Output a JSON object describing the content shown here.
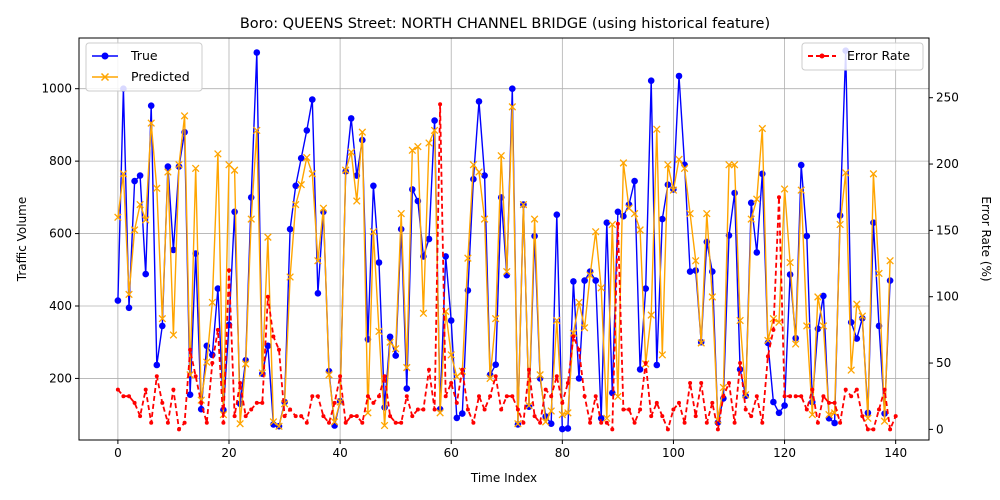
{
  "chart_data": {
    "type": "line",
    "title": "Boro: QUEENS Street: NORTH CHANNEL BRIDGE (using historical feature)",
    "xlabel": "Time Index",
    "ylabel": "Traffic Volume",
    "y2label": "Error Rate (%)",
    "xlim": [
      -7,
      146
    ],
    "ylim": [
      30,
      1140
    ],
    "y2lim": [
      -8,
      295
    ],
    "xticks": [
      0,
      20,
      40,
      60,
      80,
      100,
      120,
      140
    ],
    "yticks": [
      200,
      400,
      600,
      800,
      1000
    ],
    "y2ticks": [
      0,
      50,
      100,
      150,
      200,
      250
    ],
    "grid": true,
    "series": [
      {
        "name": "True",
        "color": "#0000ff",
        "marker": "circle",
        "axis": "left",
        "values": [
          415,
          1000,
          395,
          745,
          760,
          488,
          953,
          237,
          345,
          785,
          555,
          785,
          880,
          155,
          545,
          115,
          290,
          265,
          448,
          113,
          348,
          660,
          130,
          250,
          700,
          1100,
          213,
          290,
          73,
          68,
          135,
          612,
          732,
          808,
          885,
          970,
          435,
          660,
          220,
          70,
          137,
          772,
          918,
          760,
          858,
          308,
          732,
          520,
          120,
          315,
          263,
          612,
          172,
          722,
          690,
          537,
          585,
          912,
          115,
          537,
          360,
          91,
          103,
          443,
          750,
          965,
          760,
          210,
          238,
          700,
          485,
          1000,
          73,
          680,
          122,
          593,
          200,
          95,
          75,
          652,
          60,
          62,
          468,
          200,
          470,
          495,
          470,
          90,
          630,
          160,
          660,
          648,
          680,
          745,
          225,
          448,
          1022,
          237,
          640,
          735,
          722,
          1035,
          790,
          495,
          498,
          300,
          577,
          495,
          78,
          145,
          595,
          712,
          225,
          152,
          685,
          548,
          765,
          298,
          135,
          105,
          125,
          487,
          311,
          789,
          593,
          135,
          337,
          428,
          90,
          77,
          650,
          1105,
          355,
          310,
          366,
          105,
          630,
          345,
          103,
          470
        ]
      },
      {
        "name": "Predicted",
        "color": "#ffa500",
        "marker": "x",
        "axis": "left",
        "values": [
          645,
          765,
          432,
          610,
          680,
          638,
          905,
          725,
          365,
          770,
          320,
          790,
          925,
          210,
          780,
          140,
          245,
          410,
          820,
          100,
          790,
          775,
          75,
          240,
          640,
          885,
          215,
          590,
          80,
          68,
          130,
          480,
          680,
          735,
          810,
          765,
          525,
          670,
          210,
          80,
          135,
          775,
          825,
          690,
          880,
          105,
          605,
          330,
          70,
          300,
          282,
          655,
          230,
          830,
          840,
          380,
          850,
          885,
          105,
          385,
          265,
          205,
          220,
          532,
          790,
          770,
          640,
          200,
          365,
          815,
          495,
          950,
          75,
          680,
          125,
          640,
          210,
          80,
          110,
          360,
          100,
          105,
          325,
          410,
          340,
          485,
          605,
          450,
          90,
          625,
          150,
          795,
          670,
          655,
          610,
          240,
          375,
          888,
          265,
          790,
          720,
          805,
          780,
          655,
          525,
          298,
          655,
          425,
          85,
          175,
          790,
          790,
          360,
          155,
          640,
          695,
          890,
          305,
          365,
          355,
          723,
          520,
          295,
          720,
          345,
          100,
          425,
          345,
          100,
          105,
          625,
          768,
          223,
          405,
          372,
          90,
          765,
          490,
          82,
          525
        ]
      },
      {
        "name": "Error Rate",
        "color": "#ff0000",
        "marker": "dot",
        "axis": "right",
        "dashed": true,
        "values": [
          30,
          25,
          25,
          20,
          10,
          30,
          5,
          40,
          20,
          5,
          30,
          0,
          5,
          60,
          40,
          20,
          5,
          50,
          75,
          5,
          120,
          10,
          35,
          10,
          15,
          20,
          20,
          100,
          70,
          60,
          10,
          15,
          10,
          10,
          5,
          25,
          25,
          10,
          5,
          20,
          40,
          5,
          10,
          10,
          5,
          25,
          20,
          25,
          40,
          10,
          5,
          5,
          25,
          10,
          15,
          15,
          45,
          15,
          245,
          25,
          35,
          20,
          45,
          15,
          5,
          25,
          15,
          25,
          40,
          15,
          25,
          25,
          15,
          5,
          45,
          10,
          5,
          30,
          25,
          40,
          20,
          35,
          70,
          60,
          25,
          5,
          25,
          5,
          5,
          0,
          155,
          15,
          15,
          5,
          15,
          50,
          10,
          20,
          10,
          0,
          15,
          20,
          5,
          35,
          10,
          35,
          5,
          20,
          0,
          25,
          35,
          5,
          50,
          15,
          10,
          25,
          5,
          55,
          75,
          175,
          25,
          25,
          25,
          25,
          15,
          30,
          5,
          25,
          20,
          20,
          5,
          30,
          25,
          30,
          10,
          0,
          0,
          15,
          30,
          0,
          10
        ]
      }
    ],
    "legend_left": {
      "placement": "upper-left",
      "entries": [
        "True",
        "Predicted"
      ]
    },
    "legend_right": {
      "placement": "upper-right",
      "entries": [
        "Error Rate"
      ]
    }
  }
}
